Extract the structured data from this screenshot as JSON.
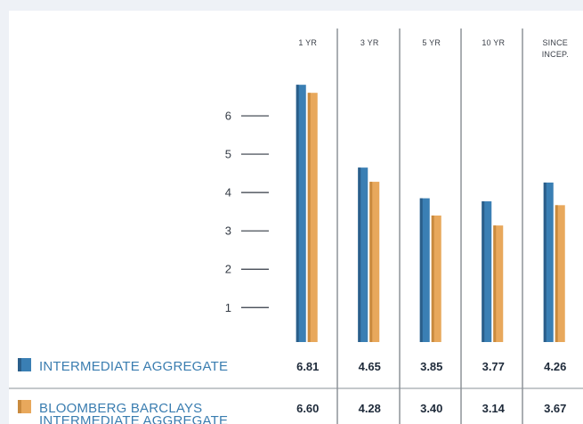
{
  "chart_data": {
    "type": "bar",
    "categories": [
      "1 YR",
      "3 YR",
      "5 YR",
      "10 YR",
      "SINCE INCEP."
    ],
    "category_lines": [
      [
        "1 YR"
      ],
      [
        "3 YR"
      ],
      [
        "5 YR"
      ],
      [
        "10 YR"
      ],
      [
        "SINCE",
        "INCEP."
      ]
    ],
    "series": [
      {
        "name": "INTERMEDIATE AGGREGATE",
        "name_lines": [
          "INTERMEDIATE AGGREGATE"
        ],
        "values": [
          6.81,
          4.65,
          3.85,
          3.77,
          4.26
        ],
        "labels": [
          "6.81",
          "4.65",
          "3.85",
          "3.77",
          "4.26"
        ],
        "color": "#3a7fb4",
        "color_dark": "#2a5e8a"
      },
      {
        "name": "BLOOMBERG BARCLAYS INTERMEDIATE AGGREGATE",
        "name_lines": [
          "BLOOMBERG BARCLAYS",
          "INTERMEDIATE AGGREGATE"
        ],
        "values": [
          6.6,
          4.28,
          3.4,
          3.14,
          3.67
        ],
        "labels": [
          "6.60",
          "4.28",
          "3.40",
          "3.14",
          "3.67"
        ],
        "color": "#e8a85c",
        "color_dark": "#c98a3e"
      }
    ],
    "yticks": [
      1,
      2,
      3,
      4,
      5,
      6
    ],
    "ylim": [
      0.1,
      7.0
    ],
    "grid": false,
    "legend": "bottom-left"
  }
}
